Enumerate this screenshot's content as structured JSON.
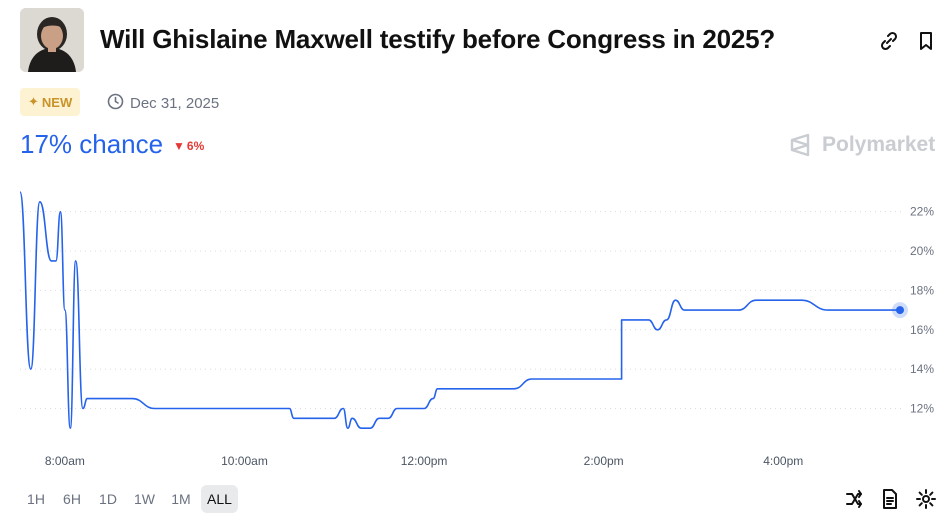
{
  "market": {
    "title": "Will Ghislaine Maxwell testify before Congress in 2025?",
    "badge": "NEW",
    "end_date": "Dec 31, 2025",
    "chance_text": "17% chance",
    "change_text": "6%",
    "brand": "Polymarket"
  },
  "icons": {
    "link": "link-icon",
    "bookmark": "bookmark-icon",
    "clock": "clock-icon",
    "compare": "shuffle-icon",
    "document": "document-icon",
    "settings": "gear-icon"
  },
  "colors": {
    "accent": "#2563eb",
    "line": "#2563eb",
    "down": "#e53935",
    "badge_bg": "#fdf3d3",
    "badge_fg": "#c9932a"
  },
  "ranges": [
    "1H",
    "6H",
    "1D",
    "1W",
    "1M",
    "ALL"
  ],
  "selected_range": "ALL",
  "chart_data": {
    "type": "line",
    "xlabel": "",
    "ylabel": "",
    "x_ticks": [
      "8:00am",
      "10:00am",
      "12:00pm",
      "2:00pm",
      "4:00pm"
    ],
    "y_ticks": [
      "22%",
      "20%",
      "18%",
      "16%",
      "14%",
      "12%"
    ],
    "ylim": [
      10.5,
      23
    ],
    "grid": true,
    "series": [
      {
        "x": [
          7.5,
          7.62,
          7.72,
          7.85,
          7.9,
          7.95,
          8.0,
          8.06,
          8.12,
          8.2,
          8.25,
          8.3,
          8.4,
          8.45,
          8.52,
          8.6,
          8.75,
          9.0,
          9.2,
          9.4,
          9.5,
          9.75,
          10.0,
          10.25,
          10.5,
          10.55,
          10.75,
          11.0,
          11.1,
          11.15,
          11.2,
          11.3,
          11.4,
          11.5,
          11.6,
          11.7,
          11.8,
          11.9,
          12.0,
          12.1,
          12.15,
          12.5,
          12.8,
          13.0,
          13.2,
          13.4,
          13.6,
          13.8,
          14.0,
          14.2,
          14.2,
          14.5,
          14.6,
          14.7,
          14.8,
          14.9,
          15.2,
          15.5,
          15.7,
          16.0,
          16.2,
          16.5,
          17.0,
          17.3
        ],
        "y": [
          23,
          14,
          22.5,
          19.5,
          19.5,
          22,
          17,
          11,
          19.5,
          12,
          12.5,
          12.5,
          12.5,
          12.5,
          12.5,
          12.5,
          12.5,
          12,
          12,
          12,
          12,
          12,
          12,
          12,
          12,
          11.5,
          11.5,
          11.5,
          12,
          11,
          11.5,
          11,
          11,
          11.5,
          11.5,
          12,
          12,
          12,
          12,
          12.5,
          13,
          13,
          13,
          13,
          13.5,
          13.5,
          13.5,
          13.5,
          13.5,
          13.5,
          16.5,
          16.5,
          16,
          16.5,
          17.5,
          17,
          17,
          17,
          17.5,
          17.5,
          17.5,
          17,
          17,
          17
        ]
      }
    ],
    "current_value": 17
  }
}
